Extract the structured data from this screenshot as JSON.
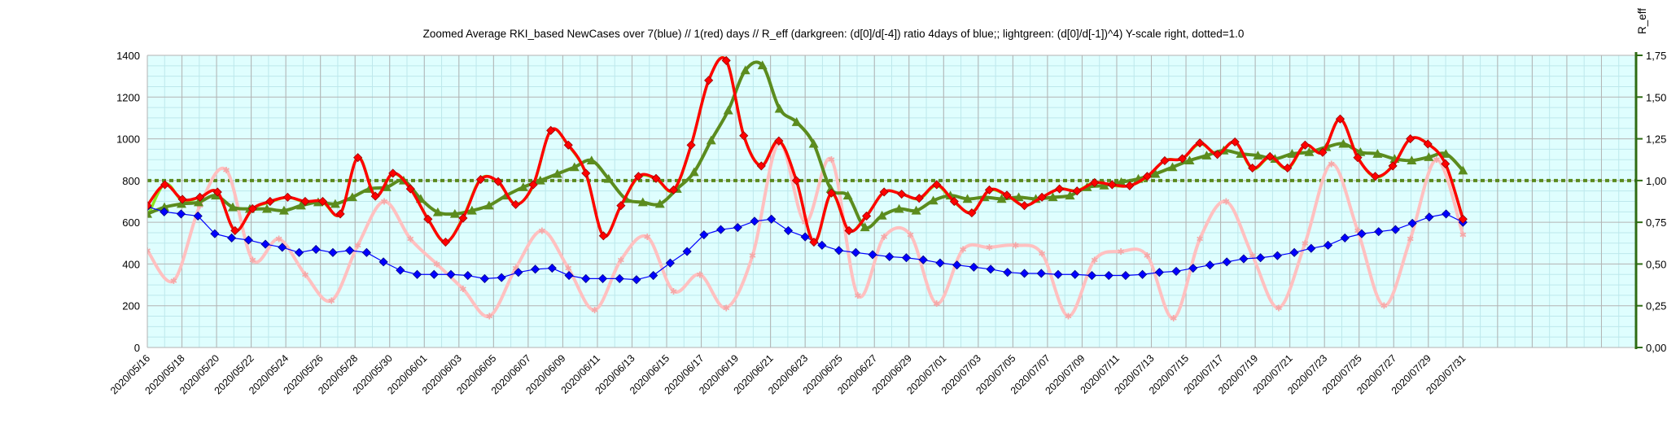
{
  "chart_data": {
    "type": "line",
    "title": "Zoomed Average RKI_based NewCases over 7(blue) // 1(red) days //  R_eff (darkgreen: (d[0]/d[-4]) ratio 4days of blue;; lightgreen: (d[0]/d[-1])^4) Y-scale right, dotted=1.0",
    "ylabel": "",
    "y2label": "R_eff",
    "ylim": [
      0,
      1400
    ],
    "y2lim": [
      0,
      1.75
    ],
    "yticks": [
      "0",
      "200",
      "400",
      "600",
      "800",
      "1000",
      "1200",
      "1400"
    ],
    "y2ticks": [
      "0,00",
      "0,25",
      "0,50",
      "0,75",
      "1,00",
      "1,25",
      "1,50",
      "1,75"
    ],
    "grid": true,
    "x_start": "2020/05/16",
    "x_end": "2020/07/31",
    "x_axis_extends_to": "2020/08/10",
    "xticks": [
      "2020/05/16",
      "2020/05/18",
      "2020/05/20",
      "2020/05/22",
      "2020/05/24",
      "2020/05/26",
      "2020/05/28",
      "2020/05/30",
      "2020/06/01",
      "2020/06/03",
      "2020/06/05",
      "2020/06/07",
      "2020/06/09",
      "2020/06/11",
      "2020/06/13",
      "2020/06/15",
      "2020/06/17",
      "2020/06/19",
      "2020/06/21",
      "2020/06/23",
      "2020/06/25",
      "2020/06/27",
      "2020/06/29",
      "2020/07/01",
      "2020/07/03",
      "2020/07/05",
      "2020/07/07",
      "2020/07/09",
      "2020/07/11",
      "2020/07/13",
      "2020/07/15",
      "2020/07/17",
      "2020/07/19",
      "2020/07/21",
      "2020/07/23",
      "2020/07/25",
      "2020/07/27",
      "2020/07/29",
      "2020/07/31"
    ],
    "reference_line": {
      "axis": "right",
      "value": 1.0,
      "style": "dotted",
      "color": "#5a8a1e"
    },
    "series": [
      {
        "axis": "left",
        "color": "#0000ff",
        "marker": "diamond",
        "smooth": false,
        "values": [
          675,
          650,
          640,
          630,
          545,
          525,
          515,
          495,
          480,
          455,
          470,
          455,
          465,
          455,
          410,
          370,
          350,
          350,
          350,
          345,
          330,
          335,
          360,
          375,
          380,
          345,
          330,
          330,
          330,
          325,
          345,
          405,
          460,
          540,
          565,
          575,
          605,
          615,
          560,
          530,
          490,
          465,
          455,
          445,
          435,
          430,
          420,
          405,
          395,
          385,
          375,
          360,
          355,
          355,
          350,
          350,
          345,
          345,
          345,
          350,
          360,
          365,
          380,
          395,
          410,
          425,
          430,
          440,
          455,
          475,
          490,
          525,
          545,
          555,
          565,
          595,
          625,
          640,
          600
        ]
      },
      {
        "axis": "left",
        "color": "#ff0000",
        "marker": "diamond",
        "smooth": true,
        "values": [
          680,
          780,
          710,
          720,
          745,
          560,
          665,
          700,
          720,
          700,
          700,
          640,
          910,
          725,
          835,
          760,
          615,
          505,
          620,
          805,
          795,
          685,
          780,
          1040,
          970,
          835,
          535,
          680,
          820,
          810,
          755,
          970,
          1280,
          1375,
          1015,
          870,
          990,
          800,
          505,
          740,
          560,
          630,
          745,
          735,
          715,
          780,
          700,
          645,
          755,
          730,
          680,
          720,
          760,
          750,
          790,
          780,
          775,
          820,
          895,
          905,
          980,
          925,
          985,
          860,
          915,
          860,
          970,
          935,
          1095,
          910,
          820,
          870,
          1000,
          975,
          880,
          615
        ]
      },
      {
        "axis": "right",
        "color": "#5b8c1e",
        "marker": "triangle",
        "smooth": true,
        "values": [
          0.8,
          0.84,
          0.86,
          0.87,
          0.91,
          0.84,
          0.83,
          0.83,
          0.82,
          0.85,
          0.87,
          0.86,
          0.9,
          0.95,
          0.96,
          1.0,
          0.89,
          0.81,
          0.8,
          0.82,
          0.85,
          0.91,
          0.96,
          1.0,
          1.04,
          1.08,
          1.12,
          1.01,
          0.89,
          0.87,
          0.86,
          0.95,
          1.05,
          1.24,
          1.42,
          1.66,
          1.69,
          1.43,
          1.35,
          1.22,
          0.95,
          0.91,
          0.72,
          0.79,
          0.83,
          0.82,
          0.88,
          0.91,
          0.89,
          0.9,
          0.89,
          0.9,
          0.89,
          0.9,
          0.91,
          0.96,
          0.97,
          0.99,
          1.01,
          1.04,
          1.08,
          1.12,
          1.15,
          1.18,
          1.16,
          1.15,
          1.13,
          1.16,
          1.17,
          1.2,
          1.22,
          1.17,
          1.16,
          1.13,
          1.12,
          1.14,
          1.16,
          1.06
        ]
      },
      {
        "axis": "right",
        "color": "#88e61c",
        "marker": "none",
        "smooth": true,
        "values": [
          0.78,
          0.98,
          0.88,
          0.9,
          0.93,
          0.7,
          0.83,
          0.87,
          0.9,
          0.87,
          0.87,
          0.8,
          1.14,
          0.91,
          1.04,
          0.95,
          0.77,
          0.63,
          0.78,
          1.01,
          0.99,
          0.86,
          0.97,
          1.3,
          1.21,
          1.04,
          0.67,
          0.85,
          1.02,
          1.01,
          0.94,
          1.21,
          1.6,
          1.72,
          1.27,
          1.09,
          1.24,
          1.0,
          0.63,
          0.92,
          0.7,
          0.79,
          0.93,
          0.92,
          0.89,
          0.97,
          0.87,
          0.81,
          0.94,
          0.91,
          0.85,
          0.9,
          0.95,
          0.94,
          0.99,
          0.97,
          0.97,
          1.02,
          1.12,
          1.13,
          1.22,
          1.16,
          1.23,
          1.07,
          1.14,
          1.07,
          1.21,
          1.17,
          1.37,
          1.14,
          1.02,
          1.09,
          1.25,
          1.22,
          1.1,
          0.77
        ]
      },
      {
        "axis": "left",
        "color": "#ffc0c0",
        "marker": "star",
        "smooth": true,
        "values": [
          465,
          320,
          680,
          850,
          420,
          520,
          350,
          225,
          490,
          700,
          520,
          400,
          280,
          150,
          380,
          560,
          380,
          180,
          420,
          530,
          270,
          350,
          190,
          440,
          980,
          600,
          900,
          250,
          530,
          540,
          210,
          470,
          480,
          490,
          450,
          150,
          420,
          460,
          440,
          140,
          520,
          700,
          440,
          190,
          500,
          880,
          560,
          200,
          520,
          900,
          540
        ]
      }
    ]
  }
}
